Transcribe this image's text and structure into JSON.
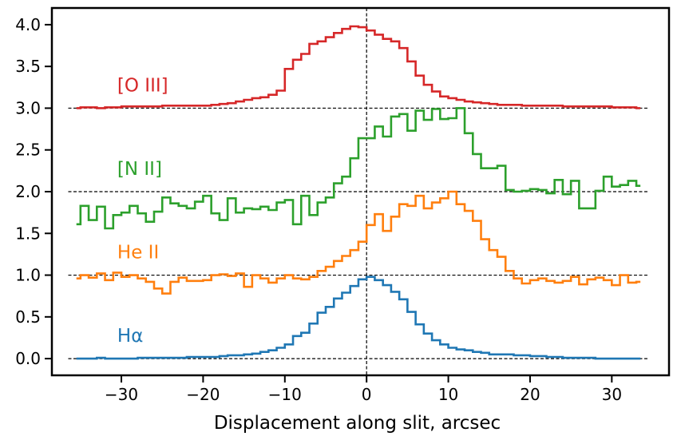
{
  "chart_data": {
    "type": "line",
    "drawstyle": "steps",
    "xlabel": "Displacement along slit, arcsec",
    "ylabel": "",
    "xlim": [
      -38.5,
      37.0
    ],
    "ylim": [
      -0.2,
      4.2
    ],
    "xticks": [
      -30,
      -20,
      -10,
      0,
      10,
      20,
      30
    ],
    "yticks": [
      0.0,
      0.5,
      1.0,
      1.5,
      2.0,
      2.5,
      3.0,
      3.5,
      4.0
    ],
    "xtick_labels": [
      "−30",
      "−20",
      "−10",
      "0",
      "10",
      "20",
      "30"
    ],
    "ytick_labels": [
      "0.0",
      "0.5",
      "1.0",
      "1.5",
      "2.0",
      "2.5",
      "3.0",
      "3.5",
      "4.0"
    ],
    "hlines": [
      0.0,
      1.0,
      2.0,
      3.0
    ],
    "vline": 0,
    "x": [
      -35.5,
      -34.5,
      -33.5,
      -32.5,
      -31.5,
      -30.5,
      -29.5,
      -28.5,
      -27.5,
      -26.5,
      -25.5,
      -24.5,
      -23.5,
      -22.5,
      -21.5,
      -20.5,
      -19.5,
      -18.5,
      -17.5,
      -16.5,
      -15.5,
      -14.5,
      -13.5,
      -12.5,
      -11.5,
      -10.5,
      -9.5,
      -8.5,
      -7.5,
      -6.5,
      -5.5,
      -4.5,
      -3.5,
      -2.5,
      -1.5,
      -0.5,
      0.5,
      1.5,
      2.5,
      3.5,
      4.5,
      5.5,
      6.5,
      7.5,
      8.5,
      9.5,
      10.5,
      11.5,
      12.5,
      13.5,
      14.5,
      15.5,
      16.5,
      17.5,
      18.5,
      19.5,
      20.5,
      21.5,
      22.5,
      23.5,
      24.5,
      25.5,
      26.5,
      27.5,
      28.5,
      29.5,
      30.5,
      31.5,
      32.5,
      33.5
    ],
    "series": [
      {
        "name": "Hα",
        "label_text": "Hα",
        "label_x": -30.5,
        "label_y": 0.2,
        "color": "#1f77b4",
        "values": [
          0.0,
          0.0,
          0.0,
          0.01,
          0.0,
          0.0,
          0.0,
          0.0,
          0.01,
          0.01,
          0.01,
          0.01,
          0.01,
          0.01,
          0.02,
          0.02,
          0.02,
          0.02,
          0.03,
          0.04,
          0.04,
          0.05,
          0.06,
          0.08,
          0.1,
          0.13,
          0.17,
          0.27,
          0.31,
          0.42,
          0.55,
          0.62,
          0.72,
          0.79,
          0.87,
          0.95,
          0.98,
          0.94,
          0.88,
          0.8,
          0.71,
          0.56,
          0.41,
          0.3,
          0.22,
          0.17,
          0.13,
          0.11,
          0.1,
          0.08,
          0.07,
          0.05,
          0.05,
          0.05,
          0.04,
          0.04,
          0.03,
          0.03,
          0.02,
          0.02,
          0.01,
          0.01,
          0.01,
          0.01,
          0.0,
          0.0,
          0.0,
          0.0,
          0.0,
          0.0
        ]
      },
      {
        "name": "He II",
        "label_text": "He II",
        "label_x": -30.5,
        "label_y": 1.2,
        "color": "#ff7f0e",
        "values": [
          0.96,
          1.0,
          0.97,
          1.02,
          0.94,
          1.03,
          0.98,
          1.0,
          0.96,
          0.92,
          0.84,
          0.78,
          0.92,
          0.97,
          0.93,
          0.93,
          0.94,
          1.0,
          1.01,
          0.99,
          1.02,
          0.86,
          1.0,
          0.96,
          0.91,
          0.96,
          1.0,
          0.96,
          0.95,
          0.98,
          1.05,
          1.1,
          1.17,
          1.23,
          1.3,
          1.4,
          1.6,
          1.73,
          1.53,
          1.7,
          1.85,
          1.83,
          1.95,
          1.8,
          1.87,
          1.92,
          2.0,
          1.85,
          1.77,
          1.65,
          1.43,
          1.3,
          1.22,
          1.05,
          0.96,
          0.9,
          0.94,
          0.96,
          0.93,
          0.91,
          0.93,
          0.98,
          0.89,
          0.95,
          0.97,
          0.94,
          0.88,
          1.0,
          0.91,
          0.92
        ]
      },
      {
        "name": "[N II]",
        "label_text": "[N II]",
        "label_x": -30.5,
        "label_y": 2.2,
        "color": "#2ca02c",
        "values": [
          1.61,
          1.83,
          1.66,
          1.82,
          1.56,
          1.72,
          1.75,
          1.83,
          1.74,
          1.64,
          1.76,
          1.93,
          1.86,
          1.83,
          1.8,
          1.88,
          1.95,
          1.74,
          1.66,
          1.92,
          1.75,
          1.8,
          1.79,
          1.82,
          1.78,
          1.87,
          1.9,
          1.61,
          1.95,
          1.72,
          1.87,
          1.93,
          2.1,
          2.18,
          2.4,
          2.64,
          2.64,
          2.78,
          2.66,
          2.9,
          2.93,
          2.73,
          2.97,
          2.86,
          2.99,
          2.87,
          2.88,
          3.0,
          2.7,
          2.45,
          2.28,
          2.28,
          2.31,
          2.02,
          2.0,
          2.01,
          2.03,
          2.02,
          1.98,
          2.14,
          1.97,
          2.13,
          1.8,
          1.8,
          2.01,
          2.18,
          2.06,
          2.08,
          2.13,
          2.07
        ]
      },
      {
        "name": "[O III]",
        "label_text": "[O III]",
        "label_x": -30.5,
        "label_y": 3.2,
        "color": "#d62728",
        "values": [
          3.0,
          3.01,
          3.01,
          3.0,
          3.01,
          3.01,
          3.02,
          3.02,
          3.02,
          3.02,
          3.02,
          3.03,
          3.03,
          3.03,
          3.03,
          3.03,
          3.03,
          3.04,
          3.05,
          3.06,
          3.08,
          3.1,
          3.12,
          3.13,
          3.16,
          3.21,
          3.47,
          3.58,
          3.65,
          3.77,
          3.8,
          3.85,
          3.9,
          3.95,
          3.98,
          3.97,
          3.93,
          3.88,
          3.83,
          3.8,
          3.72,
          3.56,
          3.39,
          3.28,
          3.2,
          3.14,
          3.12,
          3.1,
          3.08,
          3.07,
          3.06,
          3.05,
          3.04,
          3.04,
          3.04,
          3.03,
          3.03,
          3.03,
          3.03,
          3.03,
          3.02,
          3.02,
          3.02,
          3.02,
          3.02,
          3.02,
          3.01,
          3.01,
          3.01,
          3.0
        ]
      }
    ]
  }
}
